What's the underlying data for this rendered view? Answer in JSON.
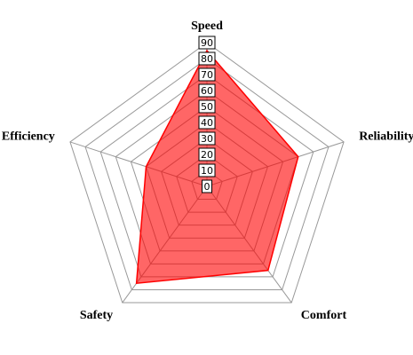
{
  "chart_data": {
    "type": "radar",
    "categories": [
      "Speed",
      "Reliability",
      "Comfort",
      "Safety",
      "Efficiency"
    ],
    "series": [
      {
        "color": "#ff0000",
        "values": [
          85,
          60,
          65,
          75,
          40
        ]
      }
    ],
    "ylim": [
      0,
      90
    ],
    "yticks": [
      0,
      10,
      20,
      30,
      40,
      50,
      60,
      70,
      80,
      90
    ],
    "grid": true
  }
}
